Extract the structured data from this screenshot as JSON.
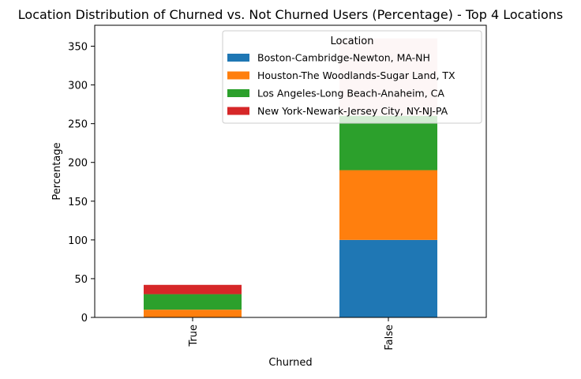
{
  "chart_data": {
    "type": "bar",
    "stacked": true,
    "title": "Location Distribution of Churned vs. Not Churned Users (Percentage) - Top 4 Locations",
    "xlabel": "Churned",
    "ylabel": "Percentage",
    "ylim": [
      0,
      377
    ],
    "yticks": [
      0,
      50,
      100,
      150,
      200,
      250,
      300,
      350
    ],
    "categories": [
      "True",
      "False"
    ],
    "legend_title": "Location",
    "legend_position": "top-right",
    "series": [
      {
        "name": "Boston-Cambridge-Newton, MA-NH",
        "color": "#1f77b4",
        "values": [
          0,
          100
        ]
      },
      {
        "name": "Houston-The Woodlands-Sugar Land, TX",
        "color": "#ff7f0e",
        "values": [
          10,
          90
        ]
      },
      {
        "name": "Los Angeles-Long Beach-Anaheim, CA",
        "color": "#2ca02c",
        "values": [
          20,
          70
        ]
      },
      {
        "name": "New York-Newark-Jersey City, NY-NJ-PA",
        "color": "#d62728",
        "values": [
          12,
          100
        ]
      }
    ],
    "grid": false
  }
}
